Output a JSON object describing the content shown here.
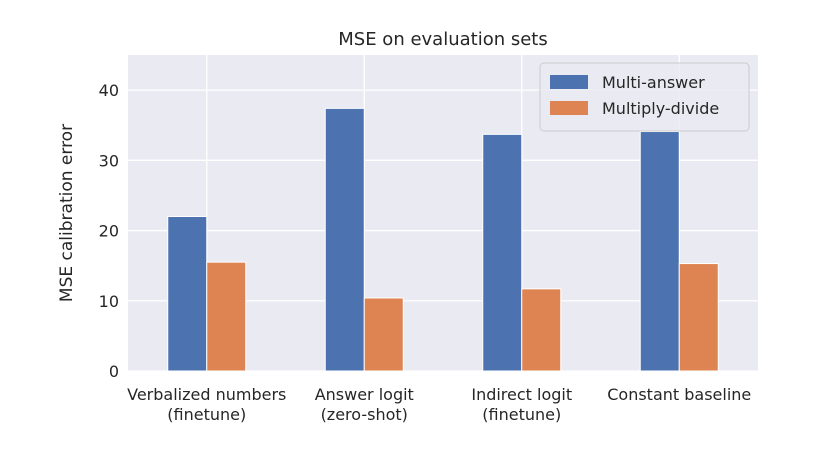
{
  "chart_data": {
    "type": "bar",
    "title": "MSE on evaluation sets",
    "xlabel": "",
    "ylabel": "MSE calibration error",
    "ylim": [
      0,
      45
    ],
    "yticks": [
      0,
      10,
      20,
      30,
      40
    ],
    "grid": true,
    "legend_position": "top-right",
    "categories": [
      [
        "Verbalized numbers",
        "(finetune)"
      ],
      [
        "Answer logit",
        "(zero-shot)"
      ],
      [
        "Indirect logit",
        "(finetune)"
      ],
      [
        "Constant baseline"
      ]
    ],
    "series": [
      {
        "name": "Multi-answer",
        "color": "#4c72b0",
        "values": [
          22.0,
          37.4,
          33.7,
          34.1
        ]
      },
      {
        "name": "Multiply-divide",
        "color": "#dd8452",
        "values": [
          15.5,
          10.4,
          11.7,
          15.3
        ]
      }
    ],
    "plot_background": "#eaeaf2",
    "grid_color": "#ffffff"
  }
}
